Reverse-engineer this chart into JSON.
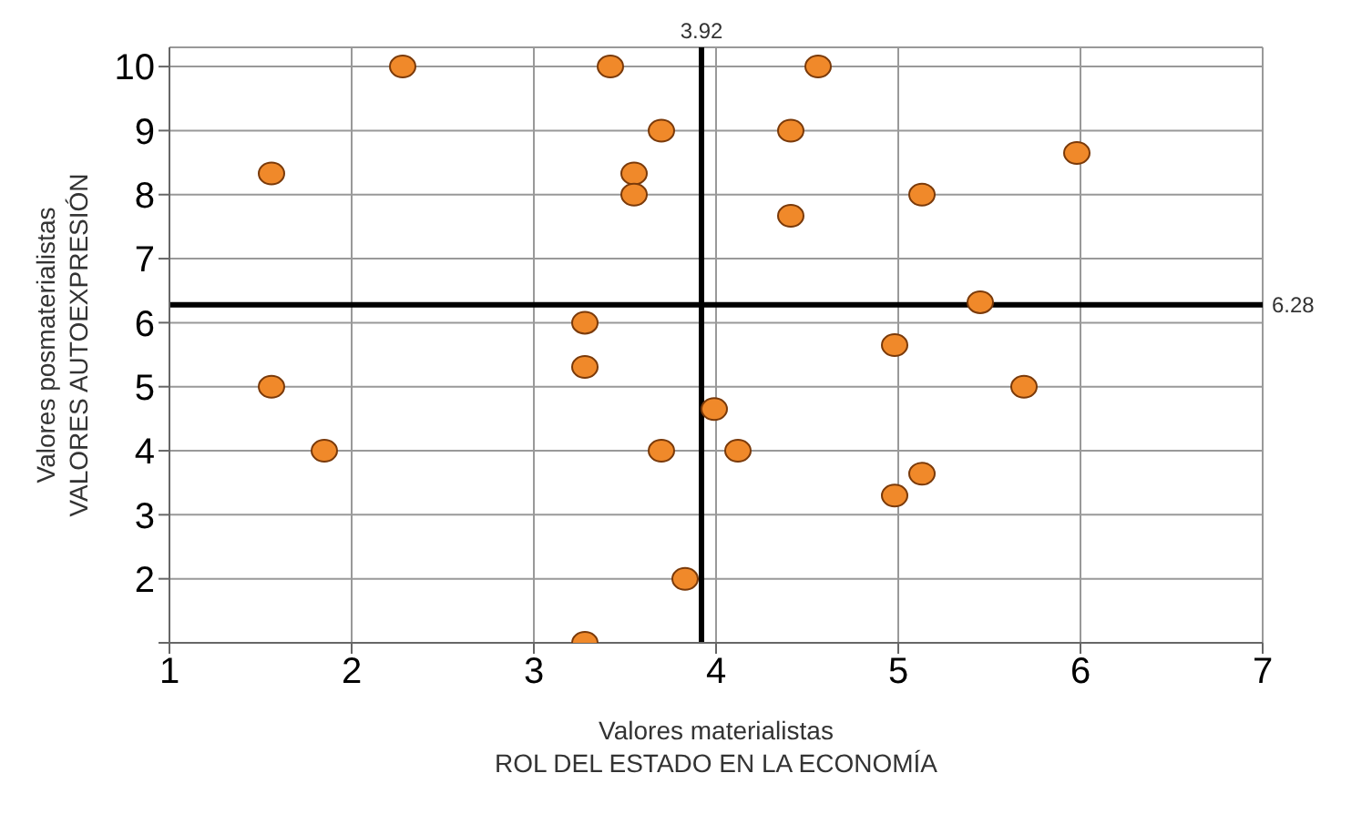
{
  "chart_data": {
    "type": "scatter",
    "xlabel": "Valores materialistas\nROL DEL ESTADO EN LA ECONOMÍA",
    "ylabel": "Valores posmaterialistas\nVALORES AUTOEXPRESIÓN",
    "x": [
      2.28,
      3.42,
      4.56,
      3.7,
      4.41,
      5.98,
      1.56,
      3.55,
      3.55,
      5.13,
      4.41,
      5.45,
      3.28,
      4.98,
      3.28,
      1.56,
      5.69,
      3.99,
      1.85,
      3.7,
      4.12,
      5.13,
      4.98,
      3.83,
      3.28
    ],
    "series": [
      {
        "color": "#f0892a",
        "values": [
          10,
          10,
          10,
          9,
          9,
          8.65,
          8.33,
          8.33,
          8,
          8,
          7.67,
          6.32,
          6,
          5.65,
          5.31,
          5,
          5,
          4.65,
          4,
          4,
          4,
          3.64,
          3.3,
          2,
          1
        ]
      }
    ],
    "xlim": [
      1,
      7
    ],
    "xticks": [
      1,
      2,
      3,
      4,
      5,
      6,
      7
    ],
    "ylim": [
      1,
      10.3
    ],
    "yticks": [
      {
        "value": 1,
        "label": null
      },
      2,
      3,
      4,
      5,
      6,
      7,
      8,
      9,
      10
    ],
    "ref_lines": [
      {
        "axis": "x",
        "value": 3.92,
        "label": "3.92",
        "color": "#000000"
      },
      {
        "axis": "y",
        "value": 6.28,
        "label": "6.28",
        "color": "#000000"
      }
    ],
    "grid": true,
    "legend": false,
    "marker": "circle"
  }
}
